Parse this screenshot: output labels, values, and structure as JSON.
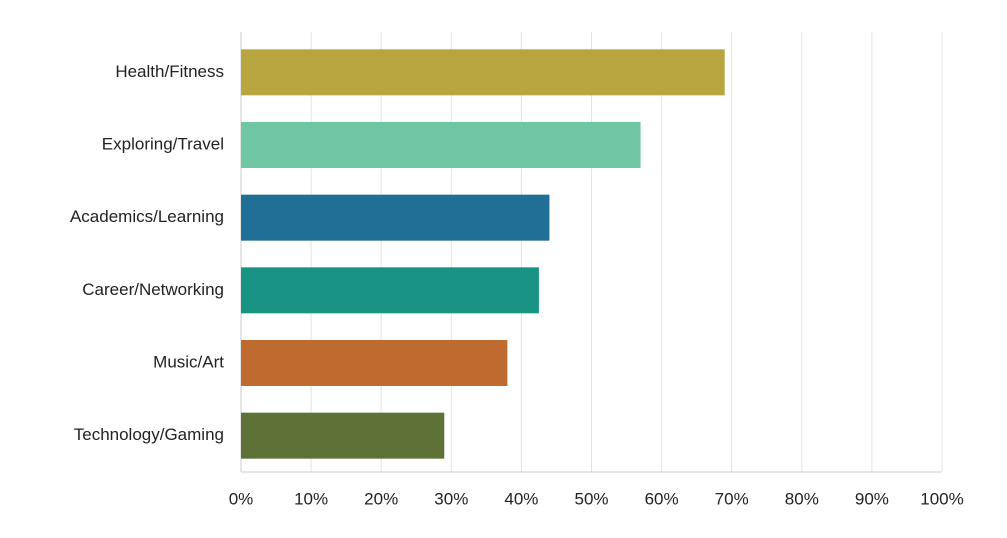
{
  "chart_data": {
    "type": "bar",
    "orientation": "horizontal",
    "categories": [
      "Health/Fitness",
      "Exploring/Travel",
      "Academics/Learning",
      "Career/Networking",
      "Music/Art",
      "Technology/Gaming"
    ],
    "values": [
      69,
      57,
      44,
      42.5,
      38,
      29
    ],
    "colors": [
      "#b9a53f",
      "#6ec6a2",
      "#216e96",
      "#199383",
      "#bf6a2f",
      "#5e7238"
    ],
    "xlim": [
      0,
      100
    ],
    "xticks": [
      {
        "value": 0,
        "label": "0%"
      },
      {
        "value": 10,
        "label": "10%"
      },
      {
        "value": 20,
        "label": "20%"
      },
      {
        "value": 30,
        "label": "30%"
      },
      {
        "value": 40,
        "label": "40%"
      },
      {
        "value": 50,
        "label": "50%"
      },
      {
        "value": 60,
        "label": "60%"
      },
      {
        "value": 70,
        "label": "70%"
      },
      {
        "value": 80,
        "label": "80%"
      },
      {
        "value": 90,
        "label": "90%"
      },
      {
        "value": 100,
        "label": "100%"
      }
    ],
    "grid": true
  }
}
